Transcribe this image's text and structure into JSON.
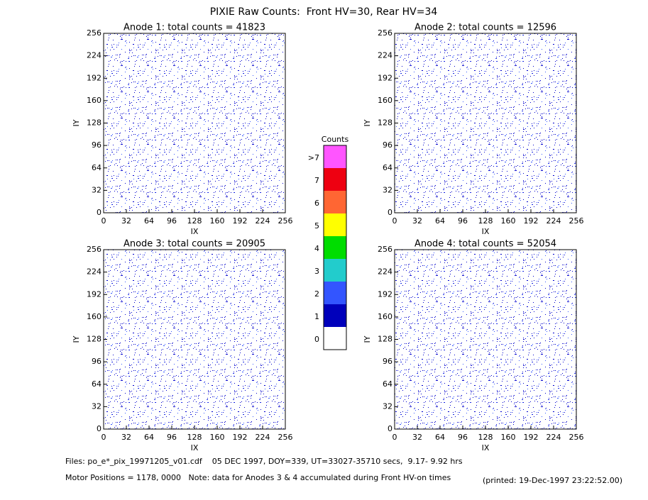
{
  "title": "PIXIE Raw Counts:  Front HV=30, Rear HV=34",
  "chart_data": [
    {
      "type": "heatmap",
      "title": "Anode 1: total counts = 41823",
      "xlabel": "IX",
      "ylabel": "IY",
      "xlim": [
        0,
        256
      ],
      "ylim": [
        0,
        256
      ],
      "xticks": [
        0,
        32,
        64,
        96,
        128,
        160,
        192,
        224,
        256
      ],
      "yticks": [
        0,
        32,
        64,
        96,
        128,
        160,
        192,
        224,
        256
      ]
    },
    {
      "type": "heatmap",
      "title": "Anode 2: total counts = 12596",
      "xlabel": "IX",
      "ylabel": "IY",
      "xlim": [
        0,
        256
      ],
      "ylim": [
        0,
        256
      ],
      "xticks": [
        0,
        32,
        64,
        96,
        128,
        160,
        192,
        224,
        256
      ],
      "yticks": [
        0,
        32,
        64,
        96,
        128,
        160,
        192,
        224,
        256
      ]
    },
    {
      "type": "heatmap",
      "title": "Anode 3: total counts = 20905",
      "xlabel": "IX",
      "ylabel": "IY",
      "xlim": [
        0,
        256
      ],
      "ylim": [
        0,
        256
      ],
      "xticks": [
        0,
        32,
        64,
        96,
        128,
        160,
        192,
        224,
        256
      ],
      "yticks": [
        0,
        32,
        64,
        96,
        128,
        160,
        192,
        224,
        256
      ]
    },
    {
      "type": "heatmap",
      "title": "Anode 4: total counts = 52054",
      "xlabel": "IX",
      "ylabel": "IY",
      "xlim": [
        0,
        256
      ],
      "ylim": [
        0,
        256
      ],
      "xticks": [
        0,
        32,
        64,
        96,
        128,
        160,
        192,
        224,
        256
      ],
      "yticks": [
        0,
        32,
        64,
        96,
        128,
        160,
        192,
        224,
        256
      ]
    }
  ],
  "colorbar": {
    "title": "Counts",
    "levels": [
      {
        "label": ">7",
        "color": "#ff55ff"
      },
      {
        "label": "7",
        "color": "#ee0011"
      },
      {
        "label": "6",
        "color": "#ff6633"
      },
      {
        "label": "5",
        "color": "#ffff00"
      },
      {
        "label": "4",
        "color": "#00dd00"
      },
      {
        "label": "3",
        "color": "#22cccc"
      },
      {
        "label": "2",
        "color": "#3355ff"
      },
      {
        "label": "1",
        "color": "#0000bb"
      },
      {
        "label": "0",
        "color": "#ffffff"
      }
    ]
  },
  "footer": {
    "files": "Files: po_e*_pix_19971205_v01.cdf    05 DEC 1997, DOY=339, UT=33027-35710 secs,  9.17- 9.92 hrs",
    "motor": "Motor Positions = 1178, 0000   Note: data for Anodes 3 & 4 accumulated during Front HV-on times",
    "printed": "(printed: 19-Dec-1997 23:22:52.00)"
  }
}
